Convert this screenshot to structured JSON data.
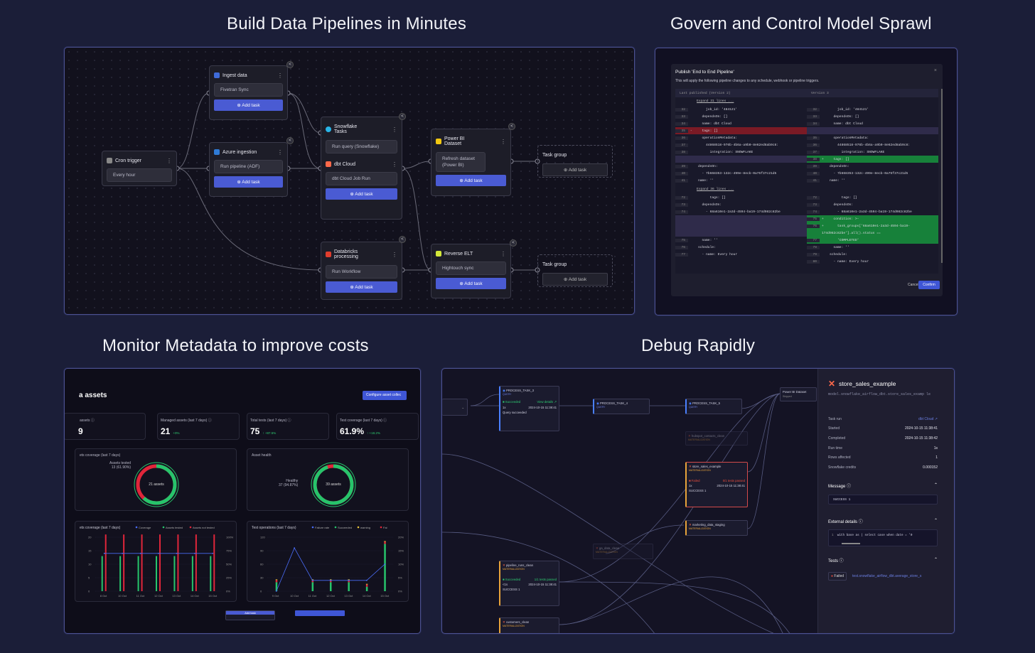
{
  "titles": {
    "pipelines": "Build Data Pipelines in Minutes",
    "govern": "Govern and Control Model Sprawl",
    "monitor": "Monitor Metadata to improve costs",
    "debug": "Debug Rapidly"
  },
  "pipeline": {
    "cron": {
      "title": "Cron trigger",
      "value": "Every hour"
    },
    "ingest": {
      "title": "Ingest data",
      "value": "Fivetran Sync",
      "add": "Add task"
    },
    "azure": {
      "title": "Azure ingestion",
      "value": "Run pipeline (ADF)",
      "add": "Add task"
    },
    "snowflake": {
      "title": "Snowflake Tasks",
      "value": "Run query (Snowflake)"
    },
    "dbt": {
      "title": "dbt Cloud",
      "value": "dbt Cloud Job Run",
      "add": "Add task"
    },
    "powerbi": {
      "title": "Power BI Dataset",
      "value": "Refresh dataset (Power BI)",
      "add": "Add task"
    },
    "taskgroup1": {
      "title": "Task group",
      "add": "Add task"
    },
    "databricks": {
      "title": "Databricks processing",
      "value": "Run Workflow",
      "add": "Add task"
    },
    "reverse": {
      "title": "Reverse ELT",
      "value": "Hightouch sync",
      "add": "Add task"
    },
    "taskgroup2": {
      "title": "Task group",
      "add": "Add task"
    }
  },
  "govern": {
    "title": "Publish 'End to End Pipeline'",
    "subtitle": "This will apply the following pipeline changes to any schedule, webhook or pipeline triggers.",
    "left_header": "Last published (Version 2)",
    "right_header": "Version 3",
    "expand1": "Expand 31 lines ...",
    "expand2": "Expand 36 lines ...",
    "cancel": "Cancel",
    "confirm": "Confirm",
    "left_lines": [
      {
        "n": "32",
        "t": "        job_id: '484121'",
        "k": "n"
      },
      {
        "n": "33",
        "t": "      dependsOn: []",
        "k": "n"
      },
      {
        "n": "34",
        "t": "      name: dbt Cloud",
        "k": "n"
      },
      {
        "n": "35",
        "t": "-     tags: []",
        "k": "d"
      },
      {
        "n": "36",
        "t": "      operationMetadata:",
        "k": "n"
      },
      {
        "n": "37",
        "t": "        44868518-976b-4b6a-a9b0-8e62ed8ab9c8:",
        "k": "n"
      },
      {
        "n": "38",
        "t": "          integration: SNOWFLAKE",
        "k": "n"
      },
      {
        "n": "",
        "t": "",
        "k": "e"
      },
      {
        "n": "39",
        "t": "    dependsOn:",
        "k": "n"
      },
      {
        "n": "40",
        "t": "      - 7b668353-132c-499e-8ecb-0a75f37c21d5",
        "k": "n"
      },
      {
        "n": "41",
        "t": "    name: ''",
        "k": "n"
      }
    ],
    "right_lines": [
      {
        "n": "32",
        "t": "        job_id: '484121'",
        "k": "n"
      },
      {
        "n": "33",
        "t": "      dependsOn: []",
        "k": "n"
      },
      {
        "n": "34",
        "t": "      name: dbt Cloud",
        "k": "n"
      },
      {
        "n": "",
        "t": "",
        "k": "e"
      },
      {
        "n": "35",
        "t": "      operationMetadata:",
        "k": "n"
      },
      {
        "n": "36",
        "t": "        44868518-976b-4b6a-a9b0-8e62ed8ab9c8:",
        "k": "n"
      },
      {
        "n": "37",
        "t": "          integration: SNOWFLAKE",
        "k": "n"
      },
      {
        "n": "38",
        "t": "+     tags: []",
        "k": "a"
      },
      {
        "n": "39",
        "t": "    dependsOn:",
        "k": "n"
      },
      {
        "n": "40",
        "t": "      - 7b668353-132c-499e-8ecb-0a75f37c21d5",
        "k": "n"
      },
      {
        "n": "41",
        "t": "    name: ''",
        "k": "n"
      }
    ],
    "left_lines2": [
      {
        "n": "72",
        "t": "          tags: []",
        "k": "n"
      },
      {
        "n": "73",
        "t": "      dependsOn:",
        "k": "n"
      },
      {
        "n": "74",
        "t": "        - 68a610e1-2a3d-4594-ba19-174d982c82be",
        "k": "n"
      },
      {
        "n": "",
        "t": "",
        "k": "e"
      },
      {
        "n": "",
        "t": "",
        "k": "e"
      },
      {
        "n": "",
        "t": "",
        "k": "e"
      },
      {
        "n": "75",
        "t": "      name: ''",
        "k": "n"
      },
      {
        "n": "76",
        "t": "    schedule:",
        "k": "n"
      },
      {
        "n": "77",
        "t": "      - name: Every hour",
        "k": "n"
      }
    ],
    "right_lines2": [
      {
        "n": "72",
        "t": "          tags: []",
        "k": "n"
      },
      {
        "n": "73",
        "t": "      dependsOn:",
        "k": "n"
      },
      {
        "n": "74",
        "t": "        - 68a610e1-2a3d-4594-ba19-174d982c82be",
        "k": "n"
      },
      {
        "n": "75",
        "t": "+     condition: >-",
        "k": "a"
      },
      {
        "n": "76",
        "t": "+       task_groups['68a610e1-2a3d-4594-ba19-",
        "k": "a"
      },
      {
        "n": "",
        "t": "174d982c82be'].all().status ==",
        "k": "a"
      },
      {
        "n": "77",
        "t": "        'COMPLETED'",
        "k": "a"
      },
      {
        "n": "78",
        "t": "      name: ''",
        "k": "n"
      },
      {
        "n": "79",
        "t": "    schedule:",
        "k": "n"
      },
      {
        "n": "80",
        "t": "      - name: Every hour",
        "k": "n"
      }
    ]
  },
  "monitor": {
    "heading": "a assets",
    "configure": "Configure asset collec",
    "kpis": [
      {
        "label": "assets",
        "value": "9",
        "delta": ""
      },
      {
        "label": "Managed assets (last 7 days)",
        "value": "21",
        "delta": "+0%"
      },
      {
        "label": "Total tests (last 7 days)",
        "value": "75",
        "delta": "↑ +87.5%"
      },
      {
        "label": "Test coverage (last 7 days)",
        "value": "61.9%",
        "delta": "↑ +18.2%"
      }
    ],
    "coverage": {
      "title": "ets coverage (last 7 days)",
      "legend": "Assets tested",
      "legend_val": "13 (61.90%)",
      "center": "21 assets",
      "pct": 0.619
    },
    "health": {
      "title": "Asset health",
      "legend": "Healthy",
      "legend_val": "37 (94.87%)",
      "center": "39 assets",
      "pct": 0.9487
    },
    "chart_data": [
      {
        "type": "bar",
        "title": "ets coverage (last 7 days)",
        "legend": [
          "Coverage",
          "Assets tested",
          "Assets not tested"
        ],
        "categories": [
          "8 Oct",
          "10 Oct",
          "11 Oct",
          "12 Oct",
          "13 Oct",
          "14 Oct",
          "15 Oct"
        ],
        "y_left": [
          "20",
          "15",
          "10",
          "5",
          "0"
        ],
        "y_right": [
          "100%",
          "75%",
          "50%",
          "25%",
          "0%"
        ],
        "series": [
          {
            "name": "Assets tested",
            "values": [
              13,
              13,
              13,
              13,
              13,
              13,
              13
            ]
          },
          {
            "name": "Assets not tested",
            "values": [
              8,
              8,
              8,
              8,
              8,
              8,
              8
            ]
          }
        ],
        "ylim": [
          0,
          20
        ]
      },
      {
        "type": "bar",
        "title": "Test operations (last 7 days)",
        "legend": [
          "Failure rate",
          "Succeeded",
          "warning",
          "Fai"
        ],
        "categories": [
          "9 Oct",
          "10 Oct",
          "11 Oct",
          "12 Oct",
          "13 Oct",
          "14 Oct",
          "15 Oct"
        ],
        "y_left": [
          "120",
          "90",
          "60",
          "30",
          "0"
        ],
        "y_right": [
          "20%",
          "15%",
          "10%",
          "5%",
          "0%"
        ],
        "series": [
          {
            "name": "Succeeded",
            "values": [
              20,
              0,
              20,
              20,
              20,
              10,
              105
            ]
          },
          {
            "name": "Failure rate",
            "values": [
              0,
              8,
              2,
              2,
              2,
              2,
              5
            ]
          }
        ],
        "ylim": [
          0,
          120
        ]
      }
    ],
    "bottom_add": "Add task"
  },
  "debug": {
    "model": "store_sales_example",
    "path": "model.snowflake_airflow_dbt.store_sales_examp le",
    "details": [
      {
        "k": "Task run",
        "v": "dbt Cloud ↗"
      },
      {
        "k": "Started",
        "v": "2024-10-15 11:38:41"
      },
      {
        "k": "Completed",
        "v": "2024-10-15 11:38:42"
      },
      {
        "k": "Run time",
        "v": "1s"
      },
      {
        "k": "Rows affected",
        "v": "1"
      },
      {
        "k": "Snowflake credits",
        "v": "0.000152"
      }
    ],
    "message": "Message",
    "message_val": "SUCCESS 1",
    "external": "External details",
    "external_code": "with base as ( select case when date = '0",
    "tests": "Tests",
    "failed": "Failed",
    "test_name": "test.snowflake_airflow_dbt.average_store_s",
    "nodes": [
      {
        "name": "PROCESS_TASK_3",
        "tag": "QUERY"
      },
      {
        "name": "PROCESS_TASK_4",
        "tag": "QUERY"
      },
      {
        "name": "PROCESS_TASK_5",
        "tag": "QUERY"
      },
      {
        "name": "hubspot_contacts_clean",
        "tag": "MATERIALIZATION"
      },
      {
        "name": "store_sales_example",
        "tag": "MATERIALIZATION"
      },
      {
        "name": "marketing_data_staging",
        "tag": "MATERIALIZATION"
      },
      {
        "name": "ga_data_clean",
        "tag": "MATERIALIZATION"
      },
      {
        "name": "pipeline_runs_clean",
        "tag": "MATERIALIZATION"
      },
      {
        "name": "customers_clean",
        "tag": "MATERIALIZATION"
      },
      {
        "name": "Power BI Dataset",
        "tag": "Skipped"
      }
    ],
    "n3": {
      "status": "Succeeded",
      "detail": "View details ↗",
      "count": "1x",
      "time": "2024-10-15 11:38:41",
      "msg": "Query succeeded"
    },
    "n5": {
      "status": "Failed",
      "detail": "0/1 tests passed",
      "count": "1x",
      "time": "2024-10-15 11:38:41",
      "msg": "SUCCESS 1"
    },
    "np": {
      "status": "Succeeded",
      "detail": "1/1 tests passed",
      "count": "<1s",
      "time": "2024-10-15 11:38:41",
      "msg": "SUCCESS 1"
    }
  }
}
